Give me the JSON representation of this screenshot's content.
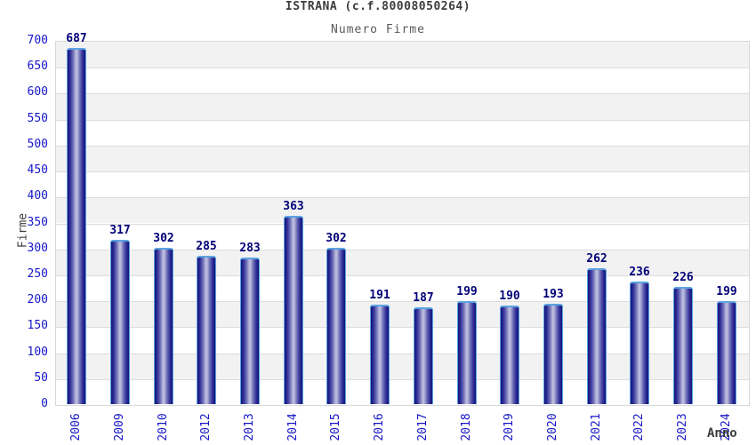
{
  "header": {
    "title": "ISTRANA (c.f.80008050264)",
    "subtitle": "Numero Firme"
  },
  "chart_data": {
    "type": "bar",
    "title": "ISTRANA (c.f.80008050264)",
    "subtitle": "Numero Firme",
    "categories": [
      "2006",
      "2009",
      "2010",
      "2012",
      "2013",
      "2014",
      "2015",
      "2016",
      "2017",
      "2018",
      "2019",
      "2020",
      "2021",
      "2022",
      "2023",
      "2024"
    ],
    "values": [
      687,
      317,
      302,
      285,
      283,
      363,
      302,
      191,
      187,
      199,
      190,
      193,
      262,
      236,
      226,
      199
    ],
    "xlabel": "Anno",
    "ylabel": "Firme",
    "ylim": [
      0,
      700
    ],
    "ytick_step": 50,
    "ytick_labels": [
      "0",
      "50",
      "100",
      "150",
      "200",
      "250",
      "300",
      "350",
      "400",
      "450",
      "500",
      "550",
      "600",
      "650",
      "700"
    ],
    "grid": "horizontal-bands",
    "legend": "none",
    "colors": {
      "bar_dark": "#14147a",
      "bar_mid": "#6a6ab6",
      "bar_light": "#c2c2e2",
      "bar_border": "#5aa2e0",
      "tick_label": "#1616c8",
      "value_label": "#000078",
      "band_gray": "#f2f2f2",
      "band_white": "#ffffff",
      "grid_line": "#dcdcdc",
      "plot_border": "#d8d8d8",
      "title_color": "#3c3c3c",
      "subtitle_color": "#5a5a5a",
      "axis_title_color": "#3c3c3c"
    }
  }
}
